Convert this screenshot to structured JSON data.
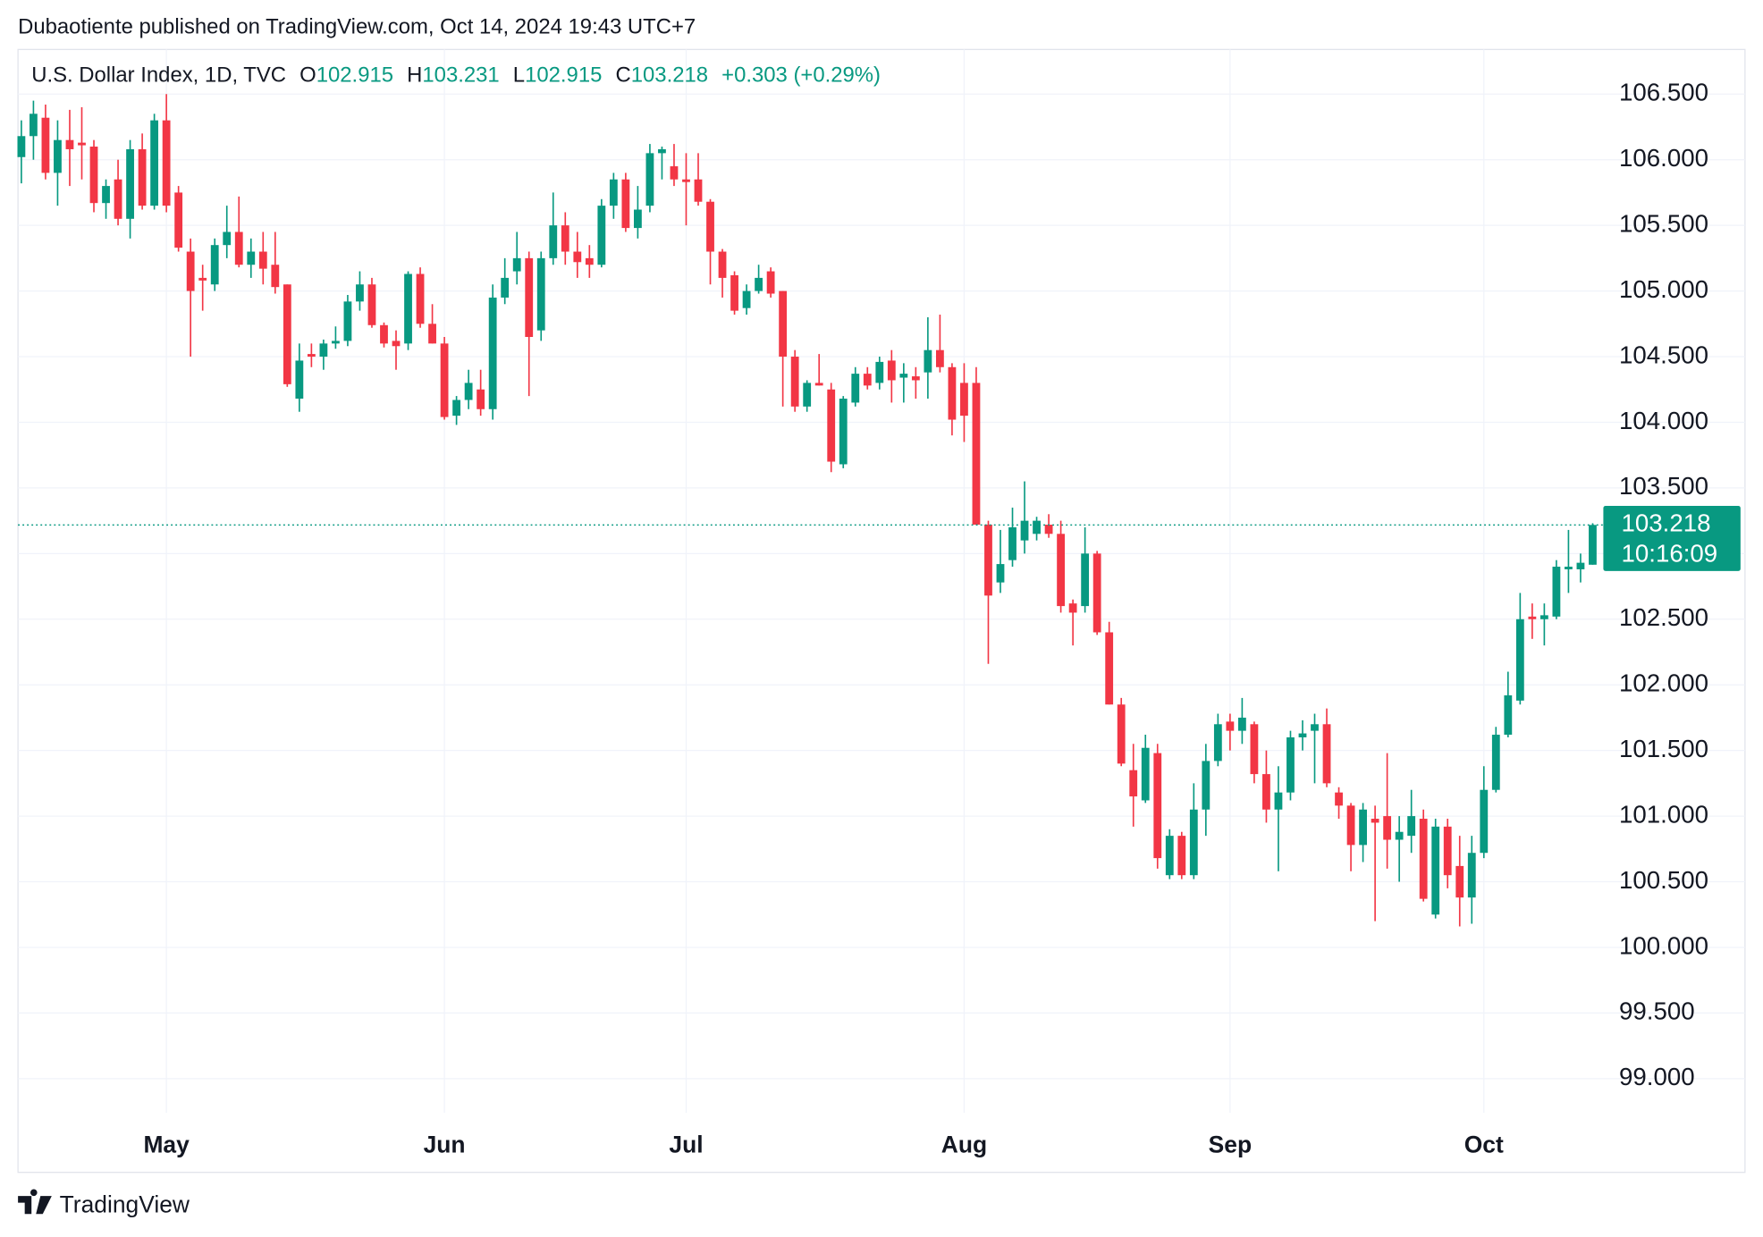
{
  "header": {
    "published": "Dubaotiente published on TradingView.com, Oct 14, 2024 19:43 UTC+7"
  },
  "legend": {
    "symbol": "U.S. Dollar Index, 1D, TVC",
    "open_label": "O",
    "high_label": "H",
    "low_label": "L",
    "close_label": "C",
    "change": "+0.303 (+0.29%)"
  },
  "price_label": {
    "countdown": "10:16:09"
  },
  "footer": {
    "brand": "TradingView"
  },
  "chart_data": {
    "type": "candlestick",
    "up_color": "#089981",
    "down_color": "#f23645",
    "grid": true,
    "ylim": [
      98.74,
      106.84
    ],
    "yticks": [
      {
        "value": 99,
        "label": "99.000"
      },
      {
        "value": 99.5,
        "label": "99.500"
      },
      {
        "value": 100,
        "label": "100.000"
      },
      {
        "value": 100.5,
        "label": "100.500"
      },
      {
        "value": 101,
        "label": "101.000"
      },
      {
        "value": 101.5,
        "label": "101.500"
      },
      {
        "value": 102,
        "label": "102.000"
      },
      {
        "value": 102.5,
        "label": "102.500"
      },
      {
        "value": 103,
        "label": "103.000"
      },
      {
        "value": 103.5,
        "label": "103.500"
      },
      {
        "value": 104,
        "label": "104.000"
      },
      {
        "value": 104.5,
        "label": "104.500"
      },
      {
        "value": 105,
        "label": "105.000"
      },
      {
        "value": 105.5,
        "label": "105.500"
      },
      {
        "value": 106,
        "label": "106.000"
      },
      {
        "value": 106.5,
        "label": "106.500"
      }
    ],
    "categories": [
      null,
      null,
      null,
      null,
      null,
      null,
      null,
      null,
      null,
      null,
      null,
      null,
      "May",
      null,
      null,
      null,
      null,
      null,
      null,
      null,
      null,
      null,
      null,
      null,
      null,
      null,
      null,
      null,
      null,
      null,
      null,
      null,
      null,
      null,
      null,
      "Jun",
      null,
      null,
      null,
      null,
      null,
      null,
      null,
      null,
      null,
      null,
      null,
      null,
      null,
      null,
      null,
      null,
      null,
      null,
      null,
      "Jul",
      null,
      null,
      null,
      null,
      null,
      null,
      null,
      null,
      null,
      null,
      null,
      null,
      null,
      null,
      null,
      null,
      null,
      null,
      null,
      null,
      null,
      null,
      "Aug",
      null,
      null,
      null,
      null,
      null,
      null,
      null,
      null,
      null,
      null,
      null,
      null,
      null,
      null,
      null,
      null,
      null,
      null,
      null,
      null,
      null,
      "Sep",
      null,
      null,
      null,
      null,
      null,
      null,
      null,
      null,
      null,
      null,
      null,
      null,
      null,
      null,
      null,
      null,
      null,
      null,
      null,
      null,
      "Oct",
      null,
      null,
      null,
      null,
      null,
      null,
      null,
      null,
      null
    ],
    "open": [
      106.02,
      106.18,
      106.32,
      105.9,
      106.15,
      106.13,
      106.1,
      105.67,
      105.85,
      105.55,
      106.08,
      105.65,
      106.3,
      105.75,
      105.3,
      105.1,
      105.05,
      105.35,
      105.45,
      105.2,
      105.3,
      105.2,
      105.05,
      104.18,
      104.52,
      104.5,
      104.6,
      104.62,
      104.92,
      105.05,
      104.74,
      104.62,
      104.6,
      105.13,
      104.75,
      104.6,
      104.05,
      104.17,
      104.25,
      104.1,
      104.95,
      105.15,
      105.25,
      104.7,
      105.25,
      105.5,
      105.3,
      105.25,
      105.2,
      105.65,
      105.85,
      105.48,
      105.65,
      106.05,
      105.95,
      105.85,
      105.85,
      105.68,
      105.3,
      105.12,
      104.87,
      105.0,
      105.15,
      105.0,
      104.5,
      104.12,
      104.3,
      104.25,
      103.68,
      104.15,
      104.37,
      104.3,
      104.47,
      104.34,
      104.35,
      104.38,
      104.55,
      104.42,
      104.3,
      104.3,
      103.22,
      102.78,
      102.95,
      103.1,
      103.15,
      103.22,
      103.15,
      102.62,
      102.6,
      103.0,
      102.4,
      101.85,
      101.35,
      101.12,
      101.48,
      100.55,
      100.85,
      100.55,
      101.05,
      101.42,
      101.72,
      101.65,
      101.7,
      101.32,
      101.05,
      101.18,
      101.6,
      101.65,
      101.7,
      101.18,
      101.08,
      100.78,
      100.98,
      101.0,
      100.82,
      100.85,
      100.98,
      100.25,
      100.92,
      100.62,
      100.38,
      100.72,
      101.2,
      101.62,
      101.88,
      102.52,
      102.5,
      102.52,
      102.88,
      102.88,
      102.915
    ],
    "high": [
      106.3,
      106.45,
      106.42,
      106.3,
      106.38,
      106.4,
      106.15,
      105.85,
      106.0,
      106.15,
      106.2,
      106.35,
      106.5,
      105.8,
      105.4,
      105.2,
      105.4,
      105.65,
      105.72,
      105.4,
      105.45,
      105.45,
      105.05,
      104.6,
      104.6,
      104.63,
      104.73,
      104.97,
      105.15,
      105.1,
      104.76,
      104.7,
      105.15,
      105.18,
      104.9,
      104.65,
      104.2,
      104.4,
      104.4,
      105.05,
      105.25,
      105.45,
      105.3,
      105.3,
      105.75,
      105.6,
      105.45,
      105.35,
      105.7,
      105.9,
      105.9,
      105.8,
      106.12,
      106.1,
      106.12,
      106.05,
      106.05,
      105.7,
      105.32,
      105.15,
      105.05,
      105.2,
      105.18,
      105.0,
      104.55,
      104.32,
      104.52,
      104.3,
      104.2,
      104.42,
      104.42,
      104.5,
      104.55,
      104.45,
      104.42,
      104.8,
      104.82,
      104.45,
      104.45,
      104.42,
      103.25,
      103.18,
      103.35,
      103.55,
      103.28,
      103.3,
      103.25,
      102.65,
      103.2,
      103.02,
      102.48,
      101.9,
      101.55,
      101.62,
      101.55,
      100.9,
      100.88,
      101.25,
      101.55,
      101.78,
      101.78,
      101.9,
      101.72,
      101.5,
      101.38,
      101.65,
      101.73,
      101.78,
      101.82,
      101.22,
      101.1,
      101.1,
      101.08,
      101.48,
      101.0,
      101.2,
      101.05,
      100.98,
      100.98,
      100.85,
      100.85,
      101.38,
      101.68,
      102.1,
      102.7,
      102.62,
      102.62,
      102.95,
      103.18,
      103.0,
      103.231
    ],
    "low": [
      105.82,
      106.0,
      105.85,
      105.65,
      105.8,
      105.85,
      105.6,
      105.55,
      105.5,
      105.4,
      105.62,
      105.62,
      105.6,
      105.3,
      104.5,
      104.85,
      105.0,
      105.25,
      105.18,
      105.1,
      105.05,
      104.98,
      104.27,
      104.08,
      104.42,
      104.4,
      104.56,
      104.58,
      104.85,
      104.72,
      104.57,
      104.4,
      104.55,
      104.72,
      104.6,
      104.02,
      103.98,
      104.1,
      104.05,
      104.02,
      104.9,
      105.05,
      104.2,
      104.62,
      105.2,
      105.2,
      105.1,
      105.1,
      105.18,
      105.55,
      105.45,
      105.4,
      105.6,
      105.85,
      105.8,
      105.5,
      105.65,
      105.05,
      104.95,
      104.82,
      104.82,
      104.98,
      104.95,
      104.12,
      104.08,
      104.08,
      104.28,
      103.62,
      103.65,
      104.12,
      104.25,
      104.25,
      104.15,
      104.15,
      104.18,
      104.18,
      104.38,
      103.9,
      103.85,
      103.25,
      102.16,
      102.7,
      102.9,
      103.0,
      103.1,
      103.12,
      102.55,
      102.3,
      102.55,
      102.38,
      101.85,
      101.38,
      100.92,
      101.1,
      100.6,
      100.52,
      100.52,
      100.52,
      100.85,
      101.38,
      101.5,
      101.55,
      101.25,
      100.95,
      100.58,
      101.12,
      101.5,
      101.25,
      101.22,
      100.98,
      100.58,
      100.65,
      100.2,
      100.6,
      100.5,
      100.72,
      100.35,
      100.22,
      100.45,
      100.16,
      100.18,
      100.68,
      101.18,
      101.6,
      101.85,
      102.35,
      102.3,
      102.5,
      102.7,
      102.78,
      102.915
    ],
    "close": [
      106.18,
      106.35,
      105.9,
      106.15,
      106.08,
      106.11,
      105.67,
      105.8,
      105.55,
      106.08,
      105.65,
      106.3,
      105.65,
      105.33,
      105.0,
      105.08,
      105.35,
      105.45,
      105.2,
      105.3,
      105.17,
      105.03,
      104.29,
      104.47,
      104.5,
      104.6,
      104.62,
      104.92,
      105.05,
      104.74,
      104.6,
      104.58,
      105.13,
      104.75,
      104.6,
      104.04,
      104.17,
      104.3,
      104.1,
      104.95,
      105.1,
      105.25,
      104.65,
      105.25,
      105.5,
      105.3,
      105.22,
      105.2,
      105.65,
      105.85,
      105.48,
      105.62,
      106.05,
      106.08,
      105.85,
      105.83,
      105.68,
      105.3,
      105.1,
      104.85,
      105.0,
      105.1,
      104.98,
      104.5,
      104.12,
      104.3,
      104.28,
      103.7,
      104.18,
      104.37,
      104.28,
      104.46,
      104.32,
      104.37,
      104.32,
      104.55,
      104.42,
      104.02,
      104.05,
      103.22,
      102.68,
      102.92,
      103.2,
      103.25,
      103.25,
      103.15,
      102.6,
      102.55,
      103.0,
      102.4,
      101.85,
      101.4,
      101.15,
      101.52,
      100.68,
      100.85,
      100.55,
      101.05,
      101.42,
      101.7,
      101.65,
      101.75,
      101.32,
      101.05,
      101.18,
      101.6,
      101.63,
      101.7,
      101.25,
      101.08,
      100.78,
      101.05,
      100.95,
      100.82,
      100.88,
      101.0,
      100.37,
      100.92,
      100.55,
      100.38,
      100.72,
      101.2,
      101.62,
      101.92,
      102.5,
      102.5,
      102.53,
      102.9,
      102.9,
      102.93,
      103.218
    ]
  }
}
